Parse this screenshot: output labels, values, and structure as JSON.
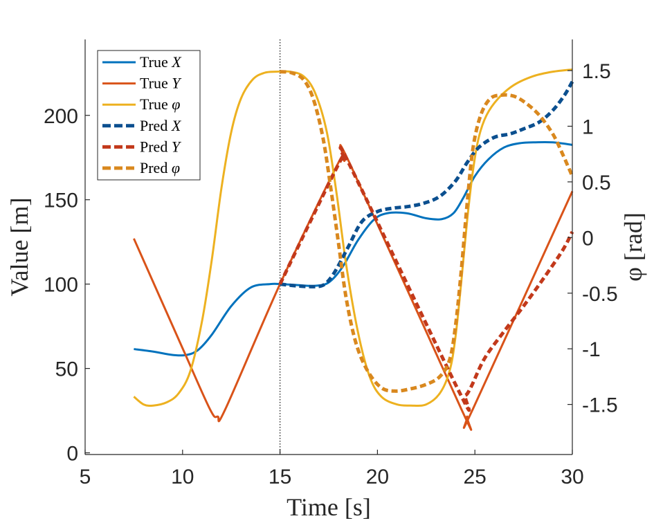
{
  "chart_data": {
    "type": "line",
    "title": "",
    "xlabel": "Time [s]",
    "ylabel_left": "Value [m]",
    "ylabel_right": "φ [rad]",
    "xlim": [
      5,
      30
    ],
    "ylim_left": [
      -1,
      245
    ],
    "ylim_right": [
      -1.95,
      1.78
    ],
    "xticks": [
      5,
      10,
      15,
      20,
      25,
      30
    ],
    "xtick_labels": [
      "5",
      "10",
      "15",
      "20",
      "25",
      "30"
    ],
    "yticks_left": [
      0,
      50,
      100,
      150,
      200
    ],
    "ytick_labels_left": [
      "0",
      "50",
      "100",
      "150",
      "200"
    ],
    "yticks_right": [
      -1.5,
      -1,
      -0.5,
      0,
      0.5,
      1,
      1.5
    ],
    "ytick_labels_right": [
      "-1.5",
      "-1",
      "-0.5",
      "0",
      "0.5",
      "1",
      "1.5"
    ],
    "vline": {
      "x": 15,
      "style": "dotted"
    },
    "legend_position": "top-left",
    "series": [
      {
        "name": "True X",
        "label_prefix": "True",
        "label_var": "X",
        "axis": "left",
        "style": "solid",
        "color": "#0072BD",
        "x": [
          7.5,
          8.5,
          9.5,
          10.2,
          10.8,
          11.5,
          12.5,
          13.5,
          14.5,
          15.0,
          15.8,
          16.8,
          17.5,
          18.2,
          19.0,
          19.8,
          20.5,
          21.5,
          22.5,
          23.3,
          23.9,
          24.4,
          25.0,
          25.7,
          26.5,
          27.3,
          28.0,
          29.0,
          30.0
        ],
        "y": [
          61.5,
          60.0,
          58.0,
          58.0,
          61.0,
          70.0,
          87.0,
          98.0,
          100.0,
          100.0,
          99.5,
          99.0,
          101.0,
          110.0,
          126.0,
          138.0,
          142.0,
          142.0,
          139.0,
          138.5,
          142.0,
          151.0,
          164.0,
          174.0,
          181.0,
          183.5,
          184.0,
          184.0,
          182.5
        ]
      },
      {
        "name": "True Y",
        "label_prefix": "True",
        "label_var": "Y",
        "axis": "left",
        "style": "solid",
        "color": "#D95319",
        "x": [
          7.5,
          10.0,
          11.4,
          11.8,
          12.2,
          15.0,
          18.0,
          18.3,
          18.6,
          24.3,
          24.6,
          24.9,
          30.0
        ],
        "y": [
          127.0,
          62.0,
          26.0,
          21.5,
          26.0,
          100.0,
          172.0,
          173.0,
          171.0,
          26.0,
          21.5,
          26.0,
          155.0
        ]
      },
      {
        "name": "True φ",
        "label_prefix": "True",
        "label_var": "φ",
        "axis": "right",
        "style": "solid",
        "color": "#EDB120",
        "x": [
          7.5,
          8.0,
          8.5,
          9.2,
          9.8,
          10.4,
          11.0,
          11.5,
          12.0,
          12.5,
          13.0,
          13.6,
          14.2,
          14.8,
          15.5,
          16.2,
          16.8,
          17.4,
          17.9,
          18.4,
          19.0,
          19.6,
          20.2,
          21.0,
          21.7,
          22.5,
          23.2,
          23.7,
          24.0,
          24.3,
          24.6,
          24.9,
          25.2,
          25.6,
          26.2,
          27.0,
          28.0,
          29.0,
          30.0
        ],
        "y": [
          -1.43,
          -1.5,
          -1.51,
          -1.48,
          -1.4,
          -1.2,
          -0.75,
          -0.2,
          0.45,
          0.95,
          1.25,
          1.42,
          1.48,
          1.49,
          1.49,
          1.45,
          1.3,
          0.95,
          0.4,
          -0.25,
          -0.85,
          -1.25,
          -1.43,
          -1.5,
          -1.51,
          -1.5,
          -1.4,
          -1.2,
          -0.9,
          -0.4,
          0.15,
          0.6,
          0.9,
          1.1,
          1.25,
          1.37,
          1.45,
          1.49,
          1.51
        ]
      },
      {
        "name": "Pred X",
        "label_prefix": "Pred",
        "label_var": "X",
        "axis": "left",
        "style": "dashed",
        "color": "#0B4F8F",
        "x": [
          15.0,
          15.8,
          16.8,
          17.3,
          17.8,
          18.5,
          19.2,
          20.0,
          20.8,
          21.6,
          22.4,
          23.2,
          24.0,
          24.6,
          25.2,
          26.0,
          26.8,
          27.5,
          28.3,
          29.0,
          29.6,
          30.0
        ],
        "y": [
          100.0,
          99.0,
          98.5,
          100.0,
          107.0,
          122.0,
          137.0,
          143.0,
          145.0,
          146.0,
          148.0,
          152.0,
          161.0,
          172.0,
          181.0,
          187.0,
          189.0,
          192.0,
          196.0,
          203.0,
          212.0,
          220.0
        ]
      },
      {
        "name": "Pred Y",
        "label_prefix": "Pred",
        "label_var": "Y",
        "axis": "left",
        "style": "dashed",
        "color": "#C2391B",
        "x": [
          15.0,
          18.0,
          18.3,
          18.6,
          24.2,
          24.5,
          24.8,
          25.5,
          26.5,
          27.5,
          28.5,
          29.5,
          30.0
        ],
        "y": [
          100.0,
          171.0,
          173.0,
          170.0,
          36.0,
          34.0,
          39.0,
          56.0,
          72.0,
          87.0,
          103.0,
          120.0,
          131.0
        ]
      },
      {
        "name": "Pred φ",
        "label_prefix": "Pred",
        "label_var": "φ",
        "axis": "right",
        "style": "dashed",
        "color": "#D9881E",
        "x": [
          15.0,
          15.6,
          16.2,
          16.7,
          17.2,
          17.6,
          18.0,
          18.4,
          18.9,
          19.5,
          20.2,
          20.9,
          21.7,
          22.5,
          23.2,
          23.7,
          24.0,
          24.3,
          24.6,
          24.9,
          25.3,
          25.8,
          26.4,
          27.0,
          27.6,
          28.3,
          29.0,
          29.5,
          30.0
        ],
        "y": [
          1.49,
          1.48,
          1.42,
          1.25,
          0.9,
          0.45,
          -0.05,
          -0.55,
          -0.95,
          -1.2,
          -1.35,
          -1.38,
          -1.36,
          -1.32,
          -1.25,
          -1.1,
          -0.8,
          -0.3,
          0.3,
          0.8,
          1.1,
          1.25,
          1.28,
          1.27,
          1.21,
          1.1,
          0.93,
          0.75,
          0.55
        ]
      }
    ]
  }
}
